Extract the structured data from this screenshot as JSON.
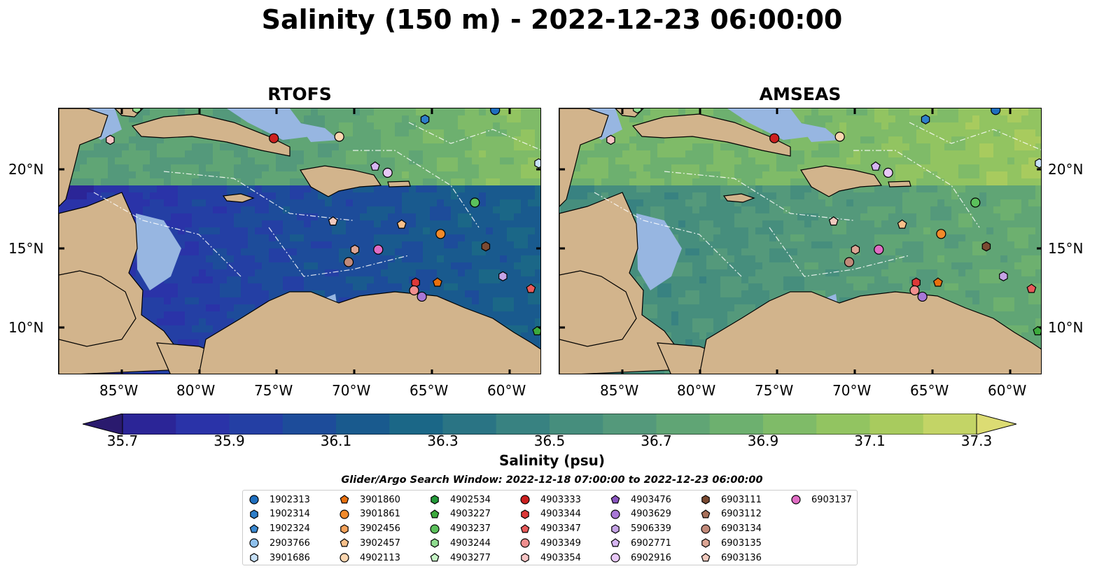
{
  "figure": {
    "title": "Salinity (150 m) - 2022-12-23 06:00:00",
    "search_window": "Glider/Argo Search Window: 2022-12-18 07:00:00 to 2022-12-23 06:00:00"
  },
  "colors": {
    "land": "#d2b48c",
    "shelf_water": "#97b6e1",
    "colormap_low": "#2a1a6e",
    "colormap_high": "#e8e37a"
  },
  "chart_data": [
    {
      "type": "heatmap",
      "title": "RTOFS",
      "variable": "Salinity (psu)",
      "depth": "150 m",
      "xlim": [
        -89,
        -58
      ],
      "ylim": [
        7,
        24
      ],
      "x_ticks": [
        "85°W",
        "80°W",
        "75°W",
        "70°W",
        "65°W",
        "60°W"
      ],
      "y_ticks": [
        "10°N",
        "15°N",
        "20°N"
      ],
      "regional_salinity": {
        "Gulf of Honduras / western Caribbean": 35.8,
        "Central Caribbean": 36.0,
        "Eastern Caribbean": 36.2,
        "Atlantic north of the Antilles": 36.7,
        "Sargasso Sea northeast": 37.0
      }
    },
    {
      "type": "heatmap",
      "title": "AMSEAS",
      "variable": "Salinity (psu)",
      "depth": "150 m",
      "xlim": [
        -89,
        -58
      ],
      "ylim": [
        7,
        24
      ],
      "x_ticks": [
        "85°W",
        "80°W",
        "75°W",
        "70°W",
        "65°W",
        "60°W"
      ],
      "y_ticks": [
        "10°N",
        "15°N",
        "20°N"
      ],
      "regional_salinity": {
        "Gulf of Honduras / western Caribbean": 36.5,
        "Central Caribbean": 36.6,
        "Eastern Caribbean": 36.8,
        "Atlantic north of the Antilles": 36.9,
        "Sargasso Sea northeast": 37.1
      }
    }
  ],
  "colorbar": {
    "label": "Salinity (psu)",
    "vmin": 35.6,
    "vmax": 37.4,
    "tick_values": [
      35.7,
      35.9,
      36.1,
      36.3,
      36.5,
      36.7,
      36.9,
      37.1,
      37.3
    ],
    "tick_labels": [
      "35.7",
      "35.9",
      "36.1",
      "36.3",
      "36.5",
      "36.7",
      "36.9",
      "37.1",
      "37.3"
    ],
    "bins": [
      "#2a1a6e",
      "#2b2597",
      "#2a33a8",
      "#243fa4",
      "#1d4c9a",
      "#195a8e",
      "#1b6787",
      "#2a7484",
      "#388281",
      "#468e7d",
      "#54997b",
      "#60a575",
      "#6db06f",
      "#7fbb68",
      "#92c461",
      "#a8cb5e",
      "#c3d466",
      "#dcdc73"
    ]
  },
  "floats": [
    {
      "id": "1902313",
      "color": "#1f6fbf",
      "shape": "circle",
      "lon": -61.0,
      "lat": 23.9
    },
    {
      "id": "1902314",
      "color": "#2e7ec9",
      "shape": "hexagon",
      "lon": -65.5,
      "lat": 23.3
    },
    {
      "id": "1902324",
      "color": "#3a88d0",
      "shape": "pentagon",
      "lon": null,
      "lat": null
    },
    {
      "id": "2903766",
      "color": "#8ec0ec",
      "shape": "circle",
      "lon": null,
      "lat": null
    },
    {
      "id": "3901686",
      "color": "#c6e0f7",
      "shape": "hexagon",
      "lon": -58.2,
      "lat": 20.5
    },
    {
      "id": "3901860",
      "color": "#e8700e",
      "shape": "pentagon",
      "lon": -64.7,
      "lat": 12.9
    },
    {
      "id": "3901861",
      "color": "#f28a2a",
      "shape": "circle",
      "lon": -64.5,
      "lat": 16.0
    },
    {
      "id": "3902456",
      "color": "#f6a25a",
      "shape": "hexagon",
      "lon": null,
      "lat": null
    },
    {
      "id": "3902457",
      "color": "#f8c08a",
      "shape": "pentagon",
      "lon": -67.0,
      "lat": 16.6
    },
    {
      "id": "4902113",
      "color": "#fbd6b0",
      "shape": "circle",
      "lon": -71.0,
      "lat": 22.2
    },
    {
      "id": "4902534",
      "color": "#239a3a",
      "shape": "hexagon",
      "lon": null,
      "lat": null
    },
    {
      "id": "4903227",
      "color": "#3caa3c",
      "shape": "pentagon",
      "lon": -58.3,
      "lat": 9.8
    },
    {
      "id": "4903237",
      "color": "#5bc05b",
      "shape": "circle",
      "lon": -62.3,
      "lat": 18.0
    },
    {
      "id": "4903244",
      "color": "#8fdc8f",
      "shape": "hexagon",
      "lon": -84.0,
      "lat": 24.0
    },
    {
      "id": "4903277",
      "color": "#c6f5c6",
      "shape": "pentagon",
      "lon": null,
      "lat": null
    },
    {
      "id": "4903333",
      "color": "#cc2020",
      "shape": "circle",
      "lon": -75.2,
      "lat": 22.1
    },
    {
      "id": "4903344",
      "color": "#dd3838",
      "shape": "hexagon",
      "lon": -66.1,
      "lat": 12.9
    },
    {
      "id": "4903347",
      "color": "#e85a5a",
      "shape": "pentagon",
      "lon": -58.7,
      "lat": 12.5
    },
    {
      "id": "4903349",
      "color": "#f08e8e",
      "shape": "circle",
      "lon": -66.2,
      "lat": 12.4
    },
    {
      "id": "4903354",
      "color": "#f7c4c4",
      "shape": "hexagon",
      "lon": -85.7,
      "lat": 22.0
    },
    {
      "id": "4903476",
      "color": "#8a55c0",
      "shape": "pentagon",
      "lon": null,
      "lat": null
    },
    {
      "id": "4903629",
      "color": "#a877d6",
      "shape": "circle",
      "lon": -65.7,
      "lat": 12.0
    },
    {
      "id": "5906339",
      "color": "#c5a3e6",
      "shape": "hexagon",
      "lon": -60.5,
      "lat": 13.3
    },
    {
      "id": "6902771",
      "color": "#d6b5f2",
      "shape": "pentagon",
      "lon": -68.7,
      "lat": 20.3
    },
    {
      "id": "6902916",
      "color": "#e8c8f7",
      "shape": "circle",
      "lon": -67.9,
      "lat": 19.9
    },
    {
      "id": "6903111",
      "color": "#7b4a32",
      "shape": "hexagon",
      "lon": -61.6,
      "lat": 15.2
    },
    {
      "id": "6903112",
      "color": "#a8705a",
      "shape": "pentagon",
      "lon": null,
      "lat": null
    },
    {
      "id": "6903134",
      "color": "#c28a7a",
      "shape": "circle",
      "lon": -70.4,
      "lat": 14.2
    },
    {
      "id": "6903135",
      "color": "#dca594",
      "shape": "hexagon",
      "lon": -70.0,
      "lat": 15.0
    },
    {
      "id": "6903136",
      "color": "#f0c9bd",
      "shape": "pentagon",
      "lon": -71.4,
      "lat": 16.8
    },
    {
      "id": "6903137",
      "color": "#e06cc4",
      "shape": "circle",
      "lon": -68.5,
      "lat": 15.0
    }
  ]
}
